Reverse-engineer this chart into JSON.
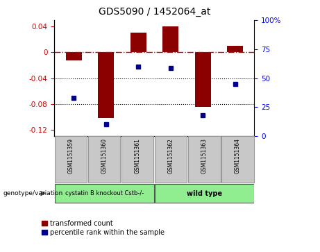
{
  "title": "GDS5090 / 1452064_at",
  "samples": [
    "GSM1151359",
    "GSM1151360",
    "GSM1151361",
    "GSM1151362",
    "GSM1151363",
    "GSM1151364"
  ],
  "transformed_count": [
    -0.012,
    -0.102,
    0.031,
    0.04,
    -0.085,
    0.01
  ],
  "percentile_rank": [
    33,
    10,
    60,
    59,
    18,
    45
  ],
  "group1_label": "cystatin B knockout Cstb-/-",
  "group2_label": "wild type",
  "group1_color": "#90EE90",
  "group2_color": "#90EE90",
  "bar_color": "#8B0000",
  "dot_color": "#00008B",
  "ylim_left": [
    -0.13,
    0.05
  ],
  "ylim_right": [
    0,
    100
  ],
  "yticks_left": [
    0.04,
    0,
    -0.04,
    -0.08,
    -0.12
  ],
  "yticks_right": [
    100,
    75,
    50,
    25,
    0
  ],
  "legend_items": [
    "transformed count",
    "percentile rank within the sample"
  ],
  "zero_line_color": "#CC0000",
  "sample_box_color": "#C8C8C8",
  "bar_width": 0.5,
  "figsize": [
    4.61,
    3.63
  ],
  "dpi": 100
}
